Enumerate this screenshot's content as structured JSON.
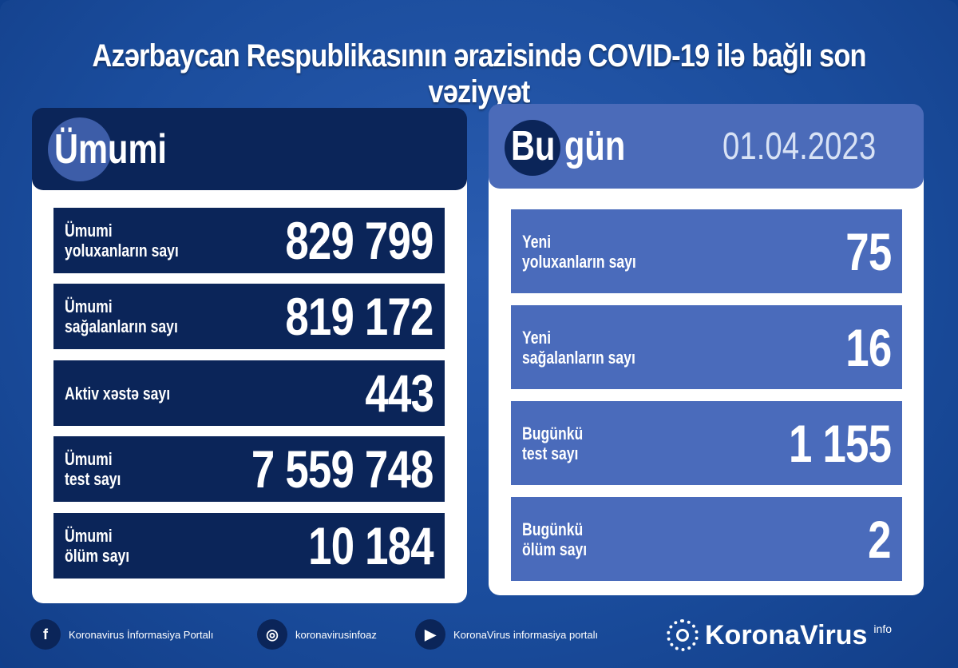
{
  "title": "Azərbaycan Respublikasının ərazisində COVID-19 ilə bağlı son vəziyyət",
  "total": {
    "heading": "Ümumi",
    "rows": [
      {
        "label": "Ümumi\nyoluxanların sayı",
        "value": "829 799"
      },
      {
        "label": "Ümumi\nsağalanların sayı",
        "value": "819 172"
      },
      {
        "label": "Aktiv xəstə sayı",
        "value": "443"
      },
      {
        "label": "Ümumi\ntest sayı",
        "value": "7 559 748"
      },
      {
        "label": "Ümumi\nölüm sayı",
        "value": "10 184"
      }
    ]
  },
  "today": {
    "heading": "Bu gün",
    "date": "01.04.2023",
    "rows": [
      {
        "label": "Yeni\nyoluxanların sayı",
        "value": "75"
      },
      {
        "label": "Yeni\nsağalanların sayı",
        "value": "16"
      },
      {
        "label": "Bugünkü\ntest sayı",
        "value": "1 155"
      },
      {
        "label": "Bugünkü\nölüm sayı",
        "value": "2"
      }
    ]
  },
  "footer": {
    "facebook": "Koronavirus İnformasiya Portalı",
    "instagram": "koronavirusinfoaz",
    "youtube": "KoronaVirus informasiya portalı",
    "logo": "KoronaVirus",
    "logo_sup": "info"
  },
  "colors": {
    "background": "#1a4c9c",
    "navy": "#0b2559",
    "today_blue": "#4a6bbb"
  }
}
